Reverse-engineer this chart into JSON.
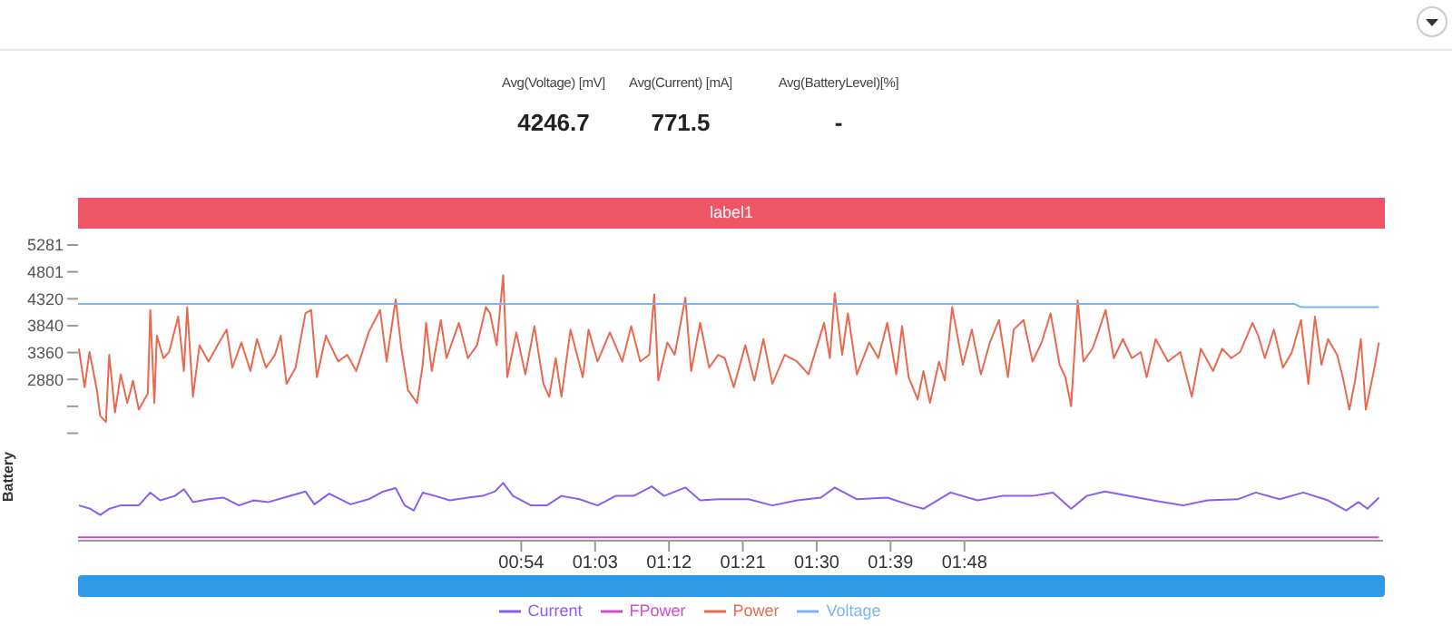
{
  "chart_data": {
    "type": "line",
    "ylabel": "Battery",
    "annotations": [
      "Avg(Voltage) [mV]",
      "4246.7",
      "Avg(Current) [mA]",
      "771.5",
      "Avg(BatteryLevel)[%]",
      "-",
      "label1"
    ],
    "xlim": [
      0,
      159
    ],
    "ylim": [
      0,
      5281
    ],
    "xticks": [
      {
        "value": 54,
        "label": "00:54"
      },
      {
        "value": 63,
        "label": "01:03"
      },
      {
        "value": 72,
        "label": "01:12"
      },
      {
        "value": 81,
        "label": "01:21"
      },
      {
        "value": 90,
        "label": "01:30"
      },
      {
        "value": 99,
        "label": "01:39"
      },
      {
        "value": 108,
        "label": "01:48"
      }
    ],
    "yticks": [
      {
        "value": 1920,
        "label": null
      },
      {
        "value": 2400,
        "label": null
      },
      2880,
      3360,
      3840,
      4320,
      4801,
      5281
    ],
    "legend": "bottom",
    "marker": "none",
    "line_style": "solid",
    "tick_labels": "xy",
    "series": [
      {
        "name": "Power",
        "color": "#e8694f",
        "x": [
          0.1,
          0.8,
          1.4,
          2.3,
          2.7,
          3.4,
          3.8,
          4.5,
          5.2,
          6.0,
          6.7,
          7.4,
          8.5,
          8.8,
          9.3,
          9.6,
          10.4,
          11.1,
          12.2,
          12.9,
          13.3,
          14.0,
          14.8,
          15.9,
          17.0,
          18.1,
          18.8,
          19.9,
          21.0,
          21.8,
          22.9,
          24.0,
          24.7,
          25.4,
          26.5,
          27.7,
          28.4,
          29.1,
          30.2,
          31.7,
          32.8,
          33.9,
          35.4,
          36.8,
          37.6,
          38.7,
          39.4,
          40.2,
          41.3,
          42.0,
          42.4,
          43.1,
          44.2,
          44.9,
          46.4,
          47.5,
          48.6,
          49.7,
          50.2,
          51.0,
          51.8,
          52.3,
          53.4,
          54.5,
          55.6,
          56.7,
          57.4,
          58.2,
          58.9,
          60.0,
          61.5,
          62.2,
          63.3,
          64.8,
          66.3,
          67.4,
          68.5,
          69.6,
          70.2,
          70.7,
          71.8,
          72.7,
          74.0,
          74.7,
          75.8,
          76.9,
          78.0,
          78.8,
          79.9,
          81.3,
          82.4,
          83.5,
          84.6,
          86.1,
          87.6,
          89.0,
          90.9,
          91.6,
          92.2,
          93.1,
          93.8,
          94.9,
          96.4,
          97.5,
          98.6,
          99.7,
          100.4,
          101.2,
          102.3,
          103.0,
          103.8,
          104.9,
          105.6,
          106.5,
          107.8,
          108.9,
          110.0,
          111.1,
          112.2,
          113.3,
          114.0,
          115.2,
          116.3,
          117.4,
          118.5,
          119.6,
          120.3,
          121.0,
          121.8,
          122.5,
          123.6,
          124.3,
          125.2,
          126.2,
          127.3,
          128.4,
          129.5,
          130.2,
          131.3,
          132.8,
          134.3,
          135.7,
          136.8,
          138.3,
          139.4,
          140.5,
          141.6,
          143.1,
          143.8,
          144.6,
          145.7,
          146.8,
          147.9,
          149.0,
          149.9,
          150.7,
          151.5,
          152.3,
          153.4,
          154.1,
          154.9,
          155.6,
          156.3,
          156.9,
          157.8,
          158.5
        ],
        "values": [
          3430,
          2740,
          3370,
          2690,
          2230,
          2120,
          3320,
          2290,
          2970,
          2460,
          2860,
          2340,
          2630,
          4120,
          2460,
          3660,
          3260,
          3370,
          4000,
          3030,
          4170,
          2570,
          3490,
          3200,
          3490,
          3770,
          3090,
          3540,
          3030,
          3600,
          3090,
          3320,
          3660,
          2800,
          3090,
          4060,
          4120,
          2920,
          3660,
          3200,
          3320,
          3030,
          3720,
          4120,
          3200,
          4310,
          3430,
          2690,
          2460,
          3140,
          3890,
          3030,
          3940,
          3260,
          3890,
          3260,
          3490,
          4170,
          4060,
          3490,
          4740,
          2920,
          3720,
          2970,
          3830,
          2800,
          2570,
          3260,
          2570,
          3770,
          2920,
          3770,
          3200,
          3720,
          3200,
          3830,
          3200,
          3320,
          4400,
          2860,
          3540,
          3320,
          4340,
          3030,
          3890,
          3090,
          3320,
          3260,
          2740,
          3490,
          2860,
          3600,
          2800,
          3320,
          3200,
          2970,
          3890,
          3260,
          4420,
          3320,
          4060,
          2970,
          3540,
          3260,
          3890,
          2970,
          3830,
          2920,
          2520,
          3030,
          2460,
          3200,
          2860,
          4170,
          3140,
          3770,
          2970,
          3540,
          3940,
          2920,
          3770,
          3940,
          3200,
          3540,
          4060,
          3140,
          2920,
          2400,
          4290,
          3200,
          3430,
          3720,
          4120,
          3260,
          3600,
          3260,
          3370,
          2920,
          3600,
          3200,
          3370,
          2570,
          3430,
          3030,
          3430,
          3260,
          3370,
          3890,
          3660,
          3260,
          3770,
          3090,
          3370,
          3940,
          2800,
          4000,
          3140,
          3600,
          3320,
          2920,
          2340,
          2860,
          3600,
          2340,
          2970,
          3540
        ]
      },
      {
        "name": "FPower",
        "color": "#d04bc8",
        "x": [
          0,
          158.5
        ],
        "values": [
          60,
          60
        ]
      },
      {
        "name": "Voltage",
        "color": "#7fb2f0",
        "x": [
          0,
          148.2,
          149.0,
          158.5
        ],
        "values": [
          4230,
          4230,
          4170,
          4170
        ]
      },
      {
        "name": "Current",
        "color": "#8a5cf0",
        "x": [
          0.1,
          1.5,
          2.7,
          3.8,
          5.2,
          7.4,
          8.8,
          10.0,
          11.8,
          12.9,
          14.0,
          15.9,
          17.7,
          19.6,
          21.4,
          23.2,
          25.1,
          27.7,
          28.8,
          30.6,
          33.2,
          35.4,
          37.2,
          38.7,
          39.8,
          40.9,
          42.0,
          43.5,
          45.3,
          47.5,
          49.3,
          50.8,
          51.8,
          53.0,
          55.2,
          57.1,
          58.9,
          61.1,
          63.3,
          65.5,
          67.7,
          69.9,
          71.4,
          74.0,
          75.8,
          78.0,
          81.7,
          84.6,
          87.6,
          90.5,
          92.2,
          94.9,
          98.6,
          101.5,
          103.0,
          106.3,
          109.6,
          112.6,
          116.3,
          118.8,
          121.0,
          122.9,
          125.1,
          130.2,
          134.6,
          137.6,
          141.3,
          143.5,
          146.4,
          149.3,
          152.3,
          154.5,
          156.0,
          157.1,
          158.5
        ],
        "values": [
          630,
          570,
          460,
          570,
          630,
          630,
          860,
          720,
          800,
          920,
          690,
          740,
          770,
          630,
          720,
          690,
          770,
          880,
          650,
          840,
          650,
          740,
          880,
          940,
          630,
          540,
          860,
          800,
          720,
          770,
          800,
          880,
          1030,
          800,
          630,
          630,
          800,
          740,
          630,
          800,
          800,
          970,
          800,
          950,
          720,
          740,
          740,
          630,
          720,
          770,
          950,
          740,
          770,
          630,
          570,
          860,
          720,
          800,
          800,
          860,
          570,
          800,
          880,
          740,
          630,
          720,
          740,
          860,
          740,
          860,
          720,
          540,
          690,
          570,
          770
        ]
      }
    ]
  }
}
